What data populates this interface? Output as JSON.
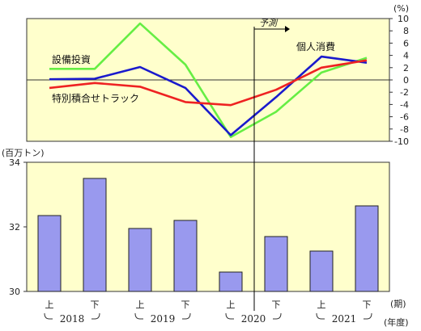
{
  "chart_data": [
    {
      "type": "line",
      "panel": "top",
      "unit": "(%)",
      "ylim": [
        -10,
        10
      ],
      "y_ticks": [
        "10",
        "8",
        "6",
        "4",
        "2",
        "0",
        "-2",
        "-4",
        "-6",
        "-8",
        "-10"
      ],
      "x": [
        "2018上",
        "2018下",
        "2019上",
        "2019下",
        "2020上",
        "2020下",
        "2021上",
        "2021下"
      ],
      "forecast_label": "予測",
      "series": [
        {
          "name": "設備投資",
          "color": "#66ee44",
          "values": [
            1.8,
            1.8,
            9.2,
            2.5,
            -9.3,
            -5.2,
            1.2,
            3.6
          ]
        },
        {
          "name": "個人消費",
          "color": "#1a1acc",
          "values": [
            0.1,
            0.2,
            2.1,
            -1.3,
            -9.0,
            -2.8,
            3.8,
            2.8
          ]
        },
        {
          "name": "特別積合せトラック",
          "color": "#ee2222",
          "values": [
            -1.3,
            -0.5,
            -1.1,
            -3.6,
            -4.1,
            -1.6,
            2.0,
            3.2
          ]
        }
      ]
    },
    {
      "type": "bar",
      "panel": "bottom",
      "unit": "(百万トン)",
      "ylim": [
        30,
        34
      ],
      "y_ticks": [
        "34",
        "32",
        "30"
      ],
      "bar_color": "#9999ee",
      "categories": [
        "上",
        "下",
        "上",
        "下",
        "上",
        "下",
        "上",
        "下"
      ],
      "values": [
        32.35,
        33.5,
        31.95,
        32.2,
        30.6,
        31.7,
        31.25,
        32.65
      ],
      "period_unit": "(期)",
      "year_unit": "(年度)",
      "years": [
        "2018",
        "2019",
        "2020",
        "2021"
      ]
    }
  ]
}
